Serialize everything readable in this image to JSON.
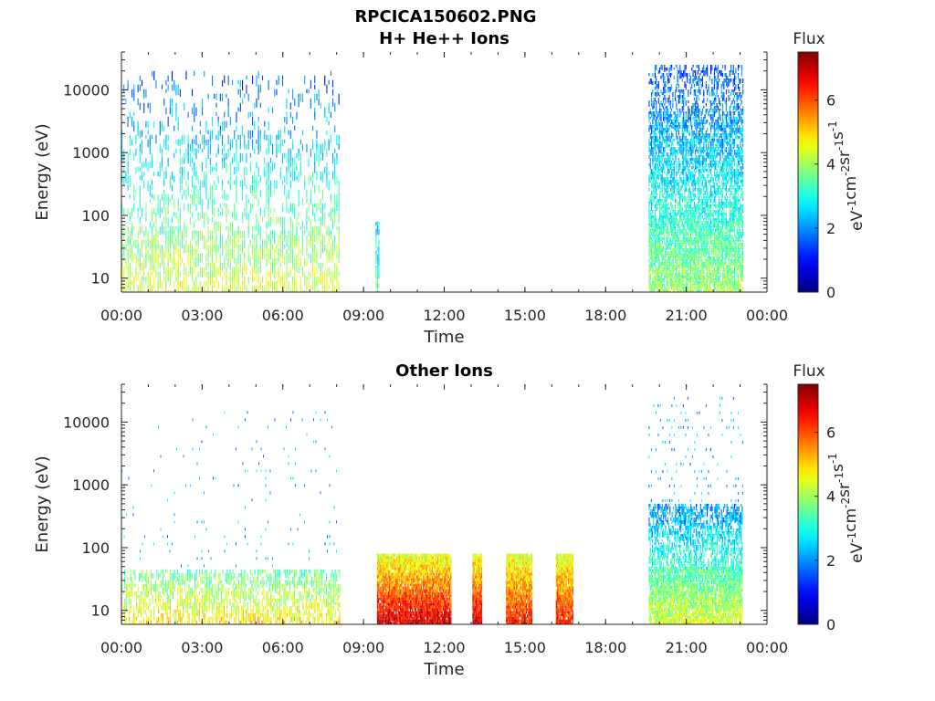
{
  "figure_title": "RPCICA150602.PNG",
  "chart_data": [
    {
      "type": "heatmap",
      "title": "H+ He++ Ions",
      "xlabel": "Time",
      "ylabel": "Energy (eV)",
      "x_ticks": [
        "00:00",
        "03:00",
        "06:00",
        "09:00",
        "12:00",
        "15:00",
        "18:00",
        "21:00",
        "00:00"
      ],
      "x_range_hours": [
        0,
        24
      ],
      "y_scale": "log",
      "y_ticks": [
        "10",
        "100",
        "1000",
        "10000"
      ],
      "y_range": [
        6,
        40000
      ],
      "colorbar": {
        "title": "Flux",
        "label_base": [
          "eV",
          "cm",
          "sr",
          "s"
        ],
        "label_exp": [
          "-1",
          "-2",
          "-1",
          "-1"
        ],
        "range": [
          0,
          7.5
        ],
        "ticks": [
          "0",
          "2",
          "4",
          "6"
        ],
        "colormap": "jet"
      },
      "data_blocks": [
        {
          "start": 0.0,
          "end": 8.1,
          "regime": "sparse-high",
          "e_min": 6,
          "e_max": 20000,
          "flux_low_e": 4.5,
          "flux_high_e": 1.6
        },
        {
          "start": 9.45,
          "end": 9.6,
          "regime": "thin",
          "e_min": 6,
          "e_max": 80,
          "flux_low_e": 3.5,
          "flux_high_e": 2.5
        },
        {
          "start": 19.6,
          "end": 23.1,
          "regime": "dense-high",
          "e_min": 6,
          "e_max": 25000,
          "flux_low_e": 4.0,
          "flux_high_e": 1.5
        }
      ]
    },
    {
      "type": "heatmap",
      "title": "Other Ions",
      "xlabel": "Time",
      "ylabel": "Energy (eV)",
      "x_ticks": [
        "00:00",
        "03:00",
        "06:00",
        "09:00",
        "12:00",
        "15:00",
        "18:00",
        "21:00",
        "00:00"
      ],
      "x_range_hours": [
        0,
        24
      ],
      "y_scale": "log",
      "y_ticks": [
        "10",
        "100",
        "1000",
        "10000"
      ],
      "y_range": [
        6,
        40000
      ],
      "colorbar": {
        "title": "Flux",
        "label_base": [
          "eV",
          "cm",
          "sr",
          "s"
        ],
        "label_exp": [
          "-1",
          "-2",
          "-1",
          "-1"
        ],
        "range": [
          0,
          7.5
        ],
        "ticks": [
          "0",
          "2",
          "4",
          "6"
        ],
        "colormap": "jet"
      },
      "data_blocks": [
        {
          "start": 0.0,
          "end": 8.1,
          "regime": "sparse-low",
          "e_min": 6,
          "e_max": 45,
          "flux_low_e": 5.0,
          "flux_high_e": 3.5
        },
        {
          "start": 9.5,
          "end": 12.25,
          "regime": "intense",
          "e_min": 6,
          "e_max": 80,
          "flux_low_e": 7.0,
          "flux_high_e": 4.5
        },
        {
          "start": 13.05,
          "end": 13.4,
          "regime": "intense",
          "e_min": 6,
          "e_max": 80,
          "flux_low_e": 7.0,
          "flux_high_e": 4.5
        },
        {
          "start": 14.3,
          "end": 15.25,
          "regime": "intense",
          "e_min": 6,
          "e_max": 80,
          "flux_low_e": 6.5,
          "flux_high_e": 4.5
        },
        {
          "start": 16.15,
          "end": 16.8,
          "regime": "intense",
          "e_min": 6,
          "e_max": 80,
          "flux_low_e": 6.5,
          "flux_high_e": 4.5
        },
        {
          "start": 19.6,
          "end": 23.1,
          "regime": "dense-low",
          "e_min": 6,
          "e_max": 500,
          "flux_low_e": 4.5,
          "flux_high_e": 2.0
        }
      ]
    }
  ]
}
